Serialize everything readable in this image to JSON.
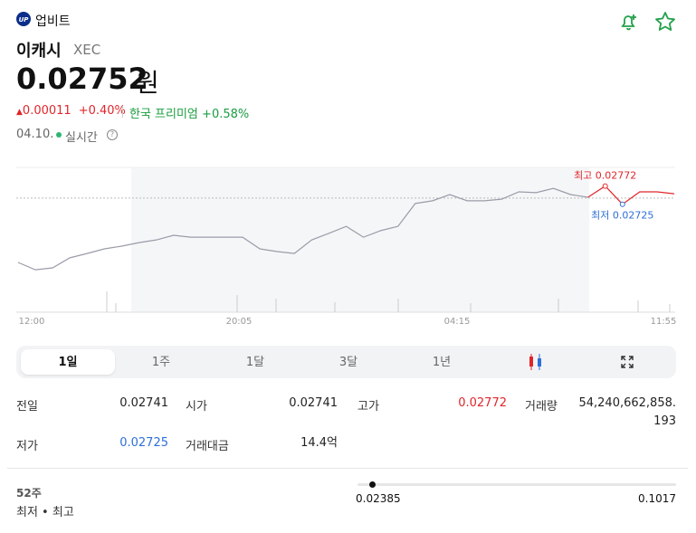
{
  "header": {
    "logo": "UP",
    "exchange": "업비트",
    "name": "이캐시",
    "ticker": "XEC",
    "price": "0.02752",
    "unit": "원",
    "change": "0.00011",
    "change_pct": "+0.40%",
    "premium_label": "한국 프리미엄",
    "premium": "+0.58%",
    "date": "04.10.",
    "realtime": "실시간"
  },
  "chart_data": {
    "type": "line",
    "x_labels": [
      "12:00",
      "20:05",
      "04:15",
      "11:55"
    ],
    "high_label": "최고 0.02772",
    "low_label": "최저 0.02725",
    "prev_close": 0.02741,
    "ylim": [
      0.0254,
      0.0282
    ],
    "up_from": 33,
    "values": [
      0.02575,
      0.02556,
      0.02561,
      0.02587,
      0.02598,
      0.0261,
      0.02617,
      0.02626,
      0.02633,
      0.02645,
      0.0264,
      0.0264,
      0.0264,
      0.0264,
      0.0261,
      0.02603,
      0.02598,
      0.02633,
      0.0265,
      0.02668,
      0.0264,
      0.02657,
      0.02668,
      0.02727,
      0.02734,
      0.0275,
      0.02734,
      0.02734,
      0.02738,
      0.02757,
      0.02755,
      0.02766,
      0.0275,
      0.02743,
      0.02772,
      0.02725,
      0.02757,
      0.02757,
      0.02752
    ],
    "high_index": 34,
    "low_index": 35
  },
  "tabs": [
    "1일",
    "1주",
    "1달",
    "3달",
    "1년"
  ],
  "stats": {
    "rows": [
      [
        {
          "label": "전일",
          "value": "0.02741"
        },
        {
          "label": "시가",
          "value": "0.02741"
        },
        {
          "label": "고가",
          "value": "0.02772"
        },
        {
          "label": "거래량",
          "value": "54,240,662,858.193"
        }
      ],
      [
        {
          "label": "저가",
          "value": "0.02725"
        },
        {
          "label": "거래대금",
          "value": "14.4억"
        }
      ]
    ]
  },
  "range52": {
    "title": "52주",
    "subtitle": "최저 • 최고",
    "low": "0.02385",
    "high": "0.1017"
  }
}
